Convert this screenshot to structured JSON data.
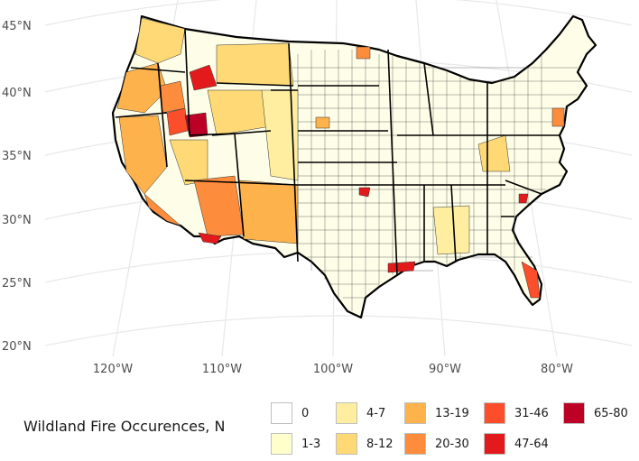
{
  "map": {
    "lat_labels": [
      "45°N",
      "40°N",
      "35°N",
      "30°N",
      "25°N",
      "20°N"
    ],
    "lon_labels": [
      "120°W",
      "110°W",
      "100°W",
      "90°W",
      "80°W"
    ]
  },
  "legend": {
    "title": "Wildland Fire Occurences, N",
    "bins": [
      {
        "label": "0",
        "color": "#ffffff"
      },
      {
        "label": "1-3",
        "color": "#ffffcc"
      },
      {
        "label": "4-7",
        "color": "#ffeda0"
      },
      {
        "label": "8-12",
        "color": "#fed976"
      },
      {
        "label": "13-19",
        "color": "#feb24c"
      },
      {
        "label": "20-30",
        "color": "#fd8d3c"
      },
      {
        "label": "31-46",
        "color": "#fc4e2a"
      },
      {
        "label": "47-64",
        "color": "#e31a1c"
      },
      {
        "label": "65-80",
        "color": "#bd0026"
      }
    ]
  }
}
